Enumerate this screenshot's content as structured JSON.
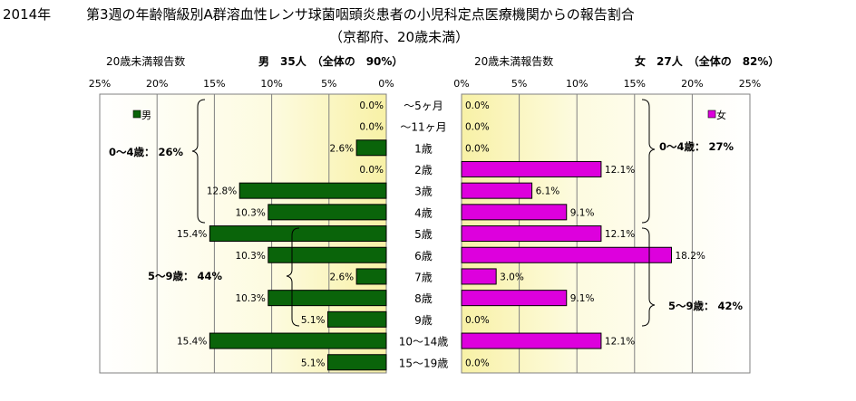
{
  "title": {
    "year": "2014年",
    "main": "第3週の年齢階級別A群溶血性レンサ球菌咽頭炎患者の小児科定点医療機関からの報告割合",
    "sub": "（京都府、20歳未満）"
  },
  "left_panel": {
    "header_label": "20歳未満報告数",
    "summary": "男　35人　（全体の　90%）",
    "legend": "男",
    "ticks": [
      "25%",
      "20%",
      "15%",
      "10%",
      "5%",
      "0%"
    ],
    "group_1": "0～4歳：  26%",
    "group_2": "5～9歳：  44%",
    "color": "#0a640a"
  },
  "right_panel": {
    "header_label": "20歳未満報告数",
    "summary": "女　27人　（全体の　82%）",
    "legend": "女",
    "ticks": [
      "0%",
      "5%",
      "10%",
      "15%",
      "20%",
      "25%"
    ],
    "group_1": "0～4歳：  27%",
    "group_2": "5～9歳：  42%",
    "color": "#dd00dd"
  },
  "chart_data": {
    "type": "bar",
    "orientation": "horizontal-butterfly",
    "categories": [
      "～5ヶ月",
      "～11ヶ月",
      "1歳",
      "2歳",
      "3歳",
      "4歳",
      "5歳",
      "6歳",
      "7歳",
      "8歳",
      "9歳",
      "10～14歳",
      "15～19歳"
    ],
    "series": [
      {
        "name": "男",
        "values": [
          0.0,
          0.0,
          2.6,
          0.0,
          12.8,
          10.3,
          15.4,
          10.3,
          2.6,
          10.3,
          5.1,
          15.4,
          5.1
        ],
        "labels": [
          "0.0%",
          "0.0%",
          "2.6%",
          "0.0%",
          "12.8%",
          "10.3%",
          "15.4%",
          "10.3%",
          "2.6%",
          "10.3%",
          "5.1%",
          "15.4%",
          "5.1%"
        ]
      },
      {
        "name": "女",
        "values": [
          0.0,
          0.0,
          0.0,
          12.1,
          6.1,
          9.1,
          12.1,
          18.2,
          3.0,
          9.1,
          0.0,
          12.1,
          0.0
        ],
        "labels": [
          "0.0%",
          "0.0%",
          "0.0%",
          "12.1%",
          "6.1%",
          "9.1%",
          "12.1%",
          "18.2%",
          "3.0%",
          "9.1%",
          "0.0%",
          "12.1%",
          "0.0%"
        ]
      }
    ],
    "xlim": [
      0,
      25
    ],
    "grid": true
  }
}
